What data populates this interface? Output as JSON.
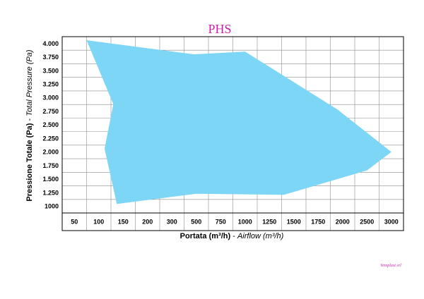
{
  "chart_data": {
    "type": "area",
    "title": "PHS",
    "xlabel": {
      "bold": "Portata (m³/h)",
      "sep": " - ",
      "italic": "Airflow (m³/h)"
    },
    "ylabel": {
      "bold": "Pressione Totale (Pa)",
      "sep": " - ",
      "italic": "Total Pressure (Pa)"
    },
    "x_categories": [
      "50",
      "100",
      "150",
      "200",
      "300",
      "500",
      "750",
      "1000",
      "1250",
      "1500",
      "1750",
      "2000",
      "2500",
      "3000"
    ],
    "y_ticks": [
      "4.000",
      "3.750",
      "3.500",
      "3.250",
      "3.000",
      "2.750",
      "2.500",
      "2.250",
      "2.000",
      "1.750",
      "1.500",
      "1.250",
      "1000"
    ],
    "ylim": [
      1000,
      4000
    ],
    "grid": true,
    "fill_color": "#7dd6f6",
    "envelope": [
      {
        "x": 75,
        "y": 4060
      },
      {
        "x": 130,
        "y": 2880
      },
      {
        "x": 112,
        "y": 2060
      },
      {
        "x": 137,
        "y": 1040
      },
      {
        "x": 500,
        "y": 1230
      },
      {
        "x": 1400,
        "y": 1210
      },
      {
        "x": 2500,
        "y": 1660
      },
      {
        "x": 3000,
        "y": 2000
      },
      {
        "x": 1950,
        "y": 2780
      },
      {
        "x": 1000,
        "y": 3850
      },
      {
        "x": 480,
        "y": 3800
      },
      {
        "x": 75,
        "y": 4060
      }
    ]
  },
  "footer": "Vemplast srl"
}
